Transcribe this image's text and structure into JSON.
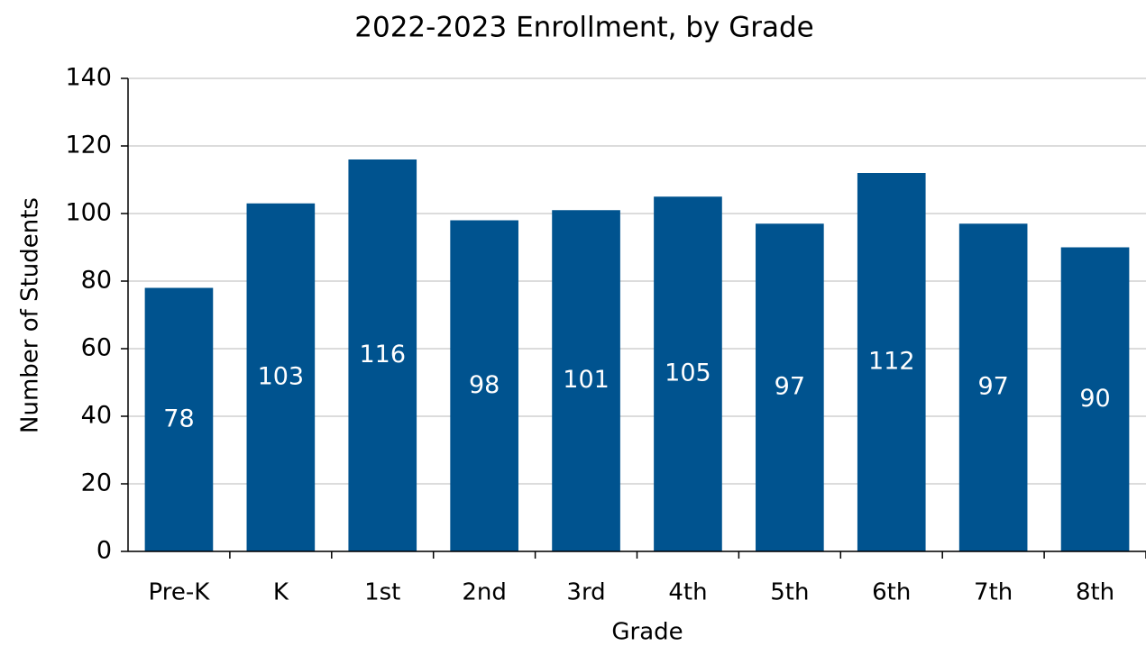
{
  "chart_data": {
    "type": "bar",
    "title": "2022-2023 Enrollment, by Grade",
    "x_label": "Grade",
    "y_label": "Number of Students",
    "categories": [
      "Pre-K",
      "K",
      "1st",
      "2nd",
      "3rd",
      "4th",
      "5th",
      "6th",
      "7th",
      "8th"
    ],
    "values": [
      78,
      103,
      116,
      98,
      101,
      105,
      97,
      112,
      97,
      90
    ],
    "color": "#00538f",
    "ylim": [
      0,
      140
    ],
    "yticks": [
      0,
      20,
      40,
      60,
      80,
      100,
      120,
      140
    ],
    "grid": true,
    "data_labels": true
  }
}
